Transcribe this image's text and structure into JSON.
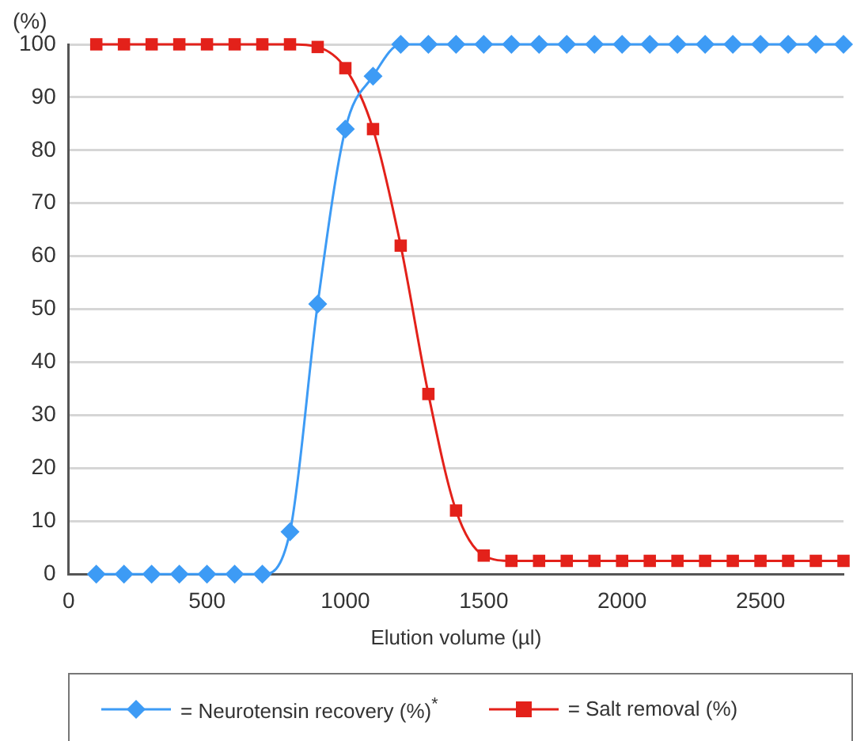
{
  "chart_data": {
    "type": "line",
    "ylabel": "(%)",
    "xlabel": "Elution volume (µl)",
    "x": [
      100,
      200,
      300,
      400,
      500,
      600,
      700,
      800,
      900,
      1000,
      1100,
      1200,
      1300,
      1400,
      1500,
      1600,
      1700,
      1800,
      1900,
      2000,
      2100,
      2200,
      2300,
      2400,
      2500,
      2600,
      2700,
      2800
    ],
    "series": [
      {
        "name": "= Neurotensin recovery (%)$^{*}$",
        "color": "#3d9bf5",
        "marker": "diamond",
        "values": [
          0,
          0,
          0,
          0,
          0,
          0,
          0,
          8,
          51,
          84,
          94,
          100,
          100,
          100,
          100,
          100,
          100,
          100,
          100,
          100,
          100,
          100,
          100,
          100,
          100,
          100,
          100,
          100
        ]
      },
      {
        "name": "= Salt removal (%)",
        "color": "#e3211a",
        "marker": "square",
        "values": [
          100,
          100,
          100,
          100,
          100,
          100,
          100,
          100,
          99.5,
          95.5,
          84,
          62,
          34,
          12,
          3.5,
          2.5,
          2.5,
          2.5,
          2.5,
          2.5,
          2.5,
          2.5,
          2.5,
          2.5,
          2.5,
          2.5,
          2.5,
          2.5
        ]
      }
    ],
    "xlim": [
      0,
      2800
    ],
    "xticks": [
      0,
      500,
      1000,
      1500,
      2000,
      2500
    ],
    "ylim": [
      0,
      100
    ],
    "yticks": [
      0,
      10,
      20,
      30,
      40,
      50,
      60,
      70,
      80,
      90,
      100
    ],
    "grid": "y",
    "legend": "bottom",
    "line_style": "solid"
  }
}
